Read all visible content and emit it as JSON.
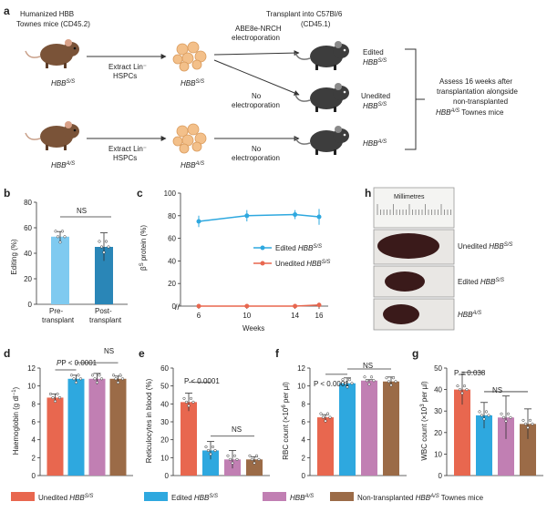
{
  "colors": {
    "unedited": "#e8674f",
    "edited": "#2ea8df",
    "hbbas": "#c17fb3",
    "nontx": "#9b6b47",
    "pre": "#7fcaf0",
    "post": "#2a86b7",
    "mouse_brown": "#7a5338",
    "mouse_dark": "#3d3d3d",
    "hspc": "#f3c08a"
  },
  "panel_a": {
    "label": "a",
    "donor_title": "Humanized HBB",
    "donor_sub": "Townes mice (CD45.2)",
    "donor_ss": "HBB",
    "donor_ss_sup": "S/S",
    "donor_as": "HBB",
    "donor_as_sup": "A/S",
    "extract_1": "Extract Lin⁻",
    "extract_2": "HSPCs",
    "hspc_ss": "HBB",
    "hspc_ss_sup": "S/S",
    "hspc_as": "HBB",
    "hspc_as_sup": "A/S",
    "abe_1": "ABE8e-NRCH",
    "abe_2": "electroporation",
    "no_1": "No",
    "no_2": "electroporation",
    "transplant_1": "Transplant into C57Bl/6",
    "transplant_2": "(CD45.1)",
    "edited": "Edited",
    "unedited": "Unedited",
    "hbb": "HBB",
    "ss": "S/S",
    "as": "A/S",
    "assess_1": "Assess 16 weeks after",
    "assess_2": "transplantation alongside",
    "assess_3": "non-transplanted",
    "assess_4a": "HBB",
    "assess_4sup": "A/S",
    "assess_4b": " Townes mice"
  },
  "panel_b": {
    "label": "b",
    "ylabel": "Editing (%)",
    "ticks": [
      "0",
      "20",
      "40",
      "60",
      "80"
    ],
    "cat1": [
      "Pre-",
      "transplant"
    ],
    "cat2": [
      "Post-",
      "transplant"
    ],
    "ns": "NS"
  },
  "panel_c": {
    "label": "c",
    "ylabel_a": "β",
    "ylabel_sup": "S",
    "ylabel_b": " protein (%)",
    "ticks": [
      "0",
      "20",
      "40",
      "60",
      "80",
      "100"
    ],
    "xticks": [
      "6",
      "10",
      "14",
      "16"
    ],
    "xlabel": "Weeks",
    "legend_edited": "Edited ",
    "legend_unedited": "Unedited ",
    "hbb": "HBB",
    "ss": "S/S"
  },
  "panel_h": {
    "label": "h",
    "scale": "Millimetres",
    "row1a": "Unedited ",
    "row2a": "Edited ",
    "hbb": "HBB",
    "ss": "S/S",
    "as": "A/S"
  },
  "panel_d": {
    "label": "d",
    "ylabel_a": "Haemoglobin (g dl",
    "ylabel_sup": "−1",
    "ylabel_b": ")",
    "ticks": [
      "0",
      "2",
      "4",
      "6",
      "8",
      "10",
      "12"
    ],
    "p": "P < 0.0001",
    "ns": "NS"
  },
  "panel_e": {
    "label": "e",
    "ylabel": "Reticulocytes in blood (%)",
    "ticks": [
      "0",
      "10",
      "20",
      "30",
      "40",
      "50",
      "60"
    ],
    "p": "P < 0.0001",
    "ns": "NS"
  },
  "panel_f": {
    "label": "f",
    "ylabel_a": "RBC count (×10",
    "ylabel_sup": "6",
    "ylabel_b": " per µl)",
    "ticks": [
      "0",
      "2",
      "4",
      "6",
      "8",
      "10",
      "12"
    ],
    "p": "P < 0.0001",
    "ns": "NS"
  },
  "panel_g": {
    "label": "g",
    "ylabel_a": "WBC count (×10",
    "ylabel_sup": "3",
    "ylabel_b": " per µl)",
    "ticks": [
      "0",
      "10",
      "20",
      "30",
      "40",
      "50"
    ],
    "p": "P = 0.038",
    "ns": "NS"
  },
  "legend": {
    "unedited": "Unedited ",
    "edited": "Edited ",
    "nontx_a": "Non-transplanted ",
    "nontx_b": " Townes mice",
    "hbb": "HBB",
    "ss": "S/S",
    "as": "A/S"
  },
  "chart_data": [
    {
      "panel": "b",
      "type": "bar",
      "categories": [
        "Pre-transplant",
        "Post-transplant"
      ],
      "values": [
        53,
        45
      ],
      "errors": [
        4,
        11
      ],
      "ylabel": "Editing (%)",
      "ylim": [
        0,
        80
      ]
    },
    {
      "panel": "c",
      "type": "line",
      "x": [
        6,
        10,
        14,
        16
      ],
      "ylabel": "βS protein (%)",
      "xlabel": "Weeks",
      "ylim": [
        0,
        100
      ],
      "series": [
        {
          "name": "Edited HBB S/S",
          "values": [
            75,
            80,
            81,
            79
          ],
          "errors": [
            5,
            5,
            4,
            7
          ]
        },
        {
          "name": "Unedited HBB S/S",
          "values": [
            0,
            0,
            0,
            1
          ],
          "errors": [
            0,
            0,
            0,
            2
          ]
        }
      ]
    },
    {
      "panel": "d",
      "type": "bar",
      "categories": [
        "Unedited HBB S/S",
        "Edited HBB S/S",
        "HBB A/S",
        "Non-transplanted HBB A/S Townes mice"
      ],
      "values": [
        8.7,
        10.8,
        10.8,
        10.8
      ],
      "errors": [
        0.4,
        0.4,
        0.6,
        0.3
      ],
      "ylabel": "Haemoglobin (g dl−1)",
      "ylim": [
        0,
        12
      ]
    },
    {
      "panel": "e",
      "type": "bar",
      "categories": [
        "Unedited HBB S/S",
        "Edited HBB S/S",
        "HBB A/S",
        "Non-transplanted HBB A/S Townes mice"
      ],
      "values": [
        41,
        14,
        9,
        9
      ],
      "errors": [
        5,
        5,
        5,
        1.5
      ],
      "ylabel": "Reticulocytes in blood (%)",
      "ylim": [
        0,
        60
      ]
    },
    {
      "panel": "f",
      "type": "bar",
      "categories": [
        "Unedited HBB S/S",
        "Edited HBB S/S",
        "HBB A/S",
        "Non-transplanted HBB A/S Townes mice"
      ],
      "values": [
        6.5,
        10.3,
        10.6,
        10.5
      ],
      "errors": [
        0.3,
        0.6,
        0.1,
        0.5
      ],
      "ylabel": "RBC count (×106 per µl)",
      "ylim": [
        0,
        12
      ]
    },
    {
      "panel": "g",
      "type": "bar",
      "categories": [
        "Unedited HBB S/S",
        "Edited HBB S/S",
        "HBB A/S",
        "Non-transplanted HBB A/S Townes mice"
      ],
      "values": [
        40,
        28,
        27,
        24
      ],
      "errors": [
        7,
        6,
        10,
        7
      ],
      "ylabel": "WBC count (×103 per µl)",
      "ylim": [
        0,
        50
      ]
    }
  ]
}
